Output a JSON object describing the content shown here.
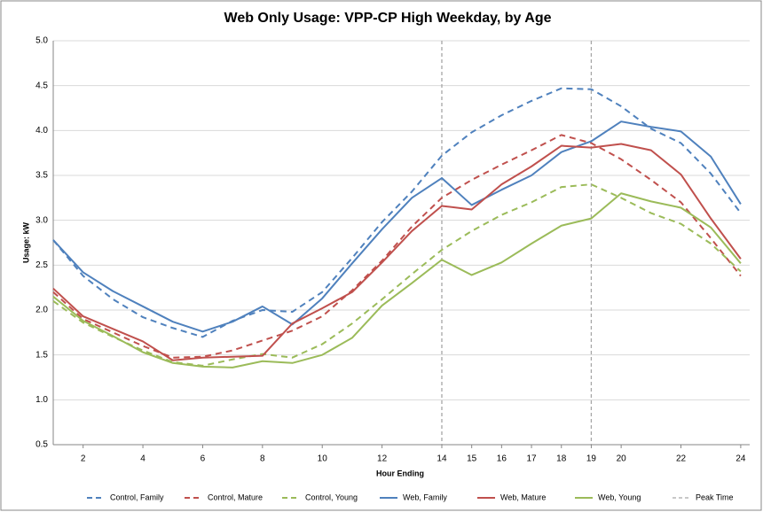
{
  "chart_data": {
    "type": "line",
    "title": "Web Only Usage: VPP-CP High Weekday, by Age",
    "x_label": "Hour Ending",
    "y_label": "Usage: kW",
    "x": [
      1,
      2,
      3,
      4,
      5,
      6,
      7,
      8,
      9,
      10,
      11,
      12,
      13,
      14,
      15,
      16,
      17,
      18,
      19,
      20,
      21,
      22,
      23,
      24
    ],
    "xlim": [
      1,
      24.3
    ],
    "xticks": [
      2,
      4,
      6,
      8,
      10,
      12,
      14,
      15,
      16,
      17,
      18,
      19,
      20,
      22,
      24
    ],
    "ylim": [
      0.5,
      5.0
    ],
    "yticks": [
      {
        "value": 0.5,
        "label": "0.5"
      },
      {
        "value": 1.0,
        "label": "1.0"
      },
      {
        "value": 1.5,
        "label": "1.5"
      },
      {
        "value": 2.0,
        "label": "2.0"
      },
      {
        "value": 2.5,
        "label": "2.5"
      },
      {
        "value": 3.0,
        "label": "3.0"
      },
      {
        "value": 3.5,
        "label": "3.5"
      },
      {
        "value": 4.0,
        "label": "4.0"
      },
      {
        "value": 4.5,
        "label": "4.5"
      },
      {
        "value": 5.0,
        "label": "5.0"
      }
    ],
    "grid": true,
    "legend": "bottom",
    "series": [
      {
        "name": "Control, Family",
        "color": "#4f81bd",
        "dashed": true,
        "values": [
          2.78,
          2.38,
          2.12,
          1.92,
          1.8,
          1.7,
          1.88,
          2.0,
          1.98,
          2.2,
          2.58,
          2.98,
          3.32,
          3.72,
          3.98,
          4.17,
          4.33,
          4.47,
          4.46,
          4.27,
          4.02,
          3.86,
          3.52,
          3.08
        ]
      },
      {
        "name": "Control, Mature",
        "color": "#c0504d",
        "dashed": true,
        "values": [
          2.2,
          1.9,
          1.75,
          1.6,
          1.47,
          1.48,
          1.55,
          1.66,
          1.77,
          1.93,
          2.22,
          2.55,
          2.93,
          3.25,
          3.45,
          3.62,
          3.78,
          3.95,
          3.86,
          3.68,
          3.45,
          3.2,
          2.8,
          2.38
        ]
      },
      {
        "name": "Control, Young",
        "color": "#9bbb59",
        "dashed": true,
        "values": [
          2.1,
          1.86,
          1.7,
          1.55,
          1.42,
          1.38,
          1.45,
          1.51,
          1.47,
          1.62,
          1.85,
          2.12,
          2.4,
          2.67,
          2.88,
          3.06,
          3.2,
          3.37,
          3.4,
          3.25,
          3.08,
          2.96,
          2.74,
          2.43
        ]
      },
      {
        "name": "Web, Family",
        "color": "#4f81bd",
        "dashed": false,
        "values": [
          2.78,
          2.42,
          2.21,
          2.04,
          1.87,
          1.76,
          1.87,
          2.04,
          1.84,
          2.13,
          2.52,
          2.9,
          3.25,
          3.47,
          3.17,
          3.34,
          3.5,
          3.76,
          3.88,
          4.1,
          4.04,
          3.99,
          3.71,
          3.18
        ]
      },
      {
        "name": "Web, Mature",
        "color": "#c0504d",
        "dashed": false,
        "values": [
          2.24,
          1.93,
          1.79,
          1.65,
          1.44,
          1.47,
          1.48,
          1.49,
          1.85,
          2.02,
          2.2,
          2.53,
          2.88,
          3.16,
          3.12,
          3.4,
          3.6,
          3.83,
          3.81,
          3.85,
          3.78,
          3.51,
          3.02,
          2.57
        ]
      },
      {
        "name": "Web, Young",
        "color": "#9bbb59",
        "dashed": false,
        "values": [
          2.15,
          1.88,
          1.71,
          1.53,
          1.41,
          1.37,
          1.36,
          1.43,
          1.41,
          1.5,
          1.69,
          2.05,
          2.3,
          2.56,
          2.39,
          2.53,
          2.74,
          2.94,
          3.02,
          3.3,
          3.21,
          3.14,
          2.92,
          2.52
        ]
      }
    ],
    "peak_lines": {
      "name": "Peak Time",
      "color": "#a6a6a6",
      "x": [
        14,
        19
      ]
    }
  }
}
